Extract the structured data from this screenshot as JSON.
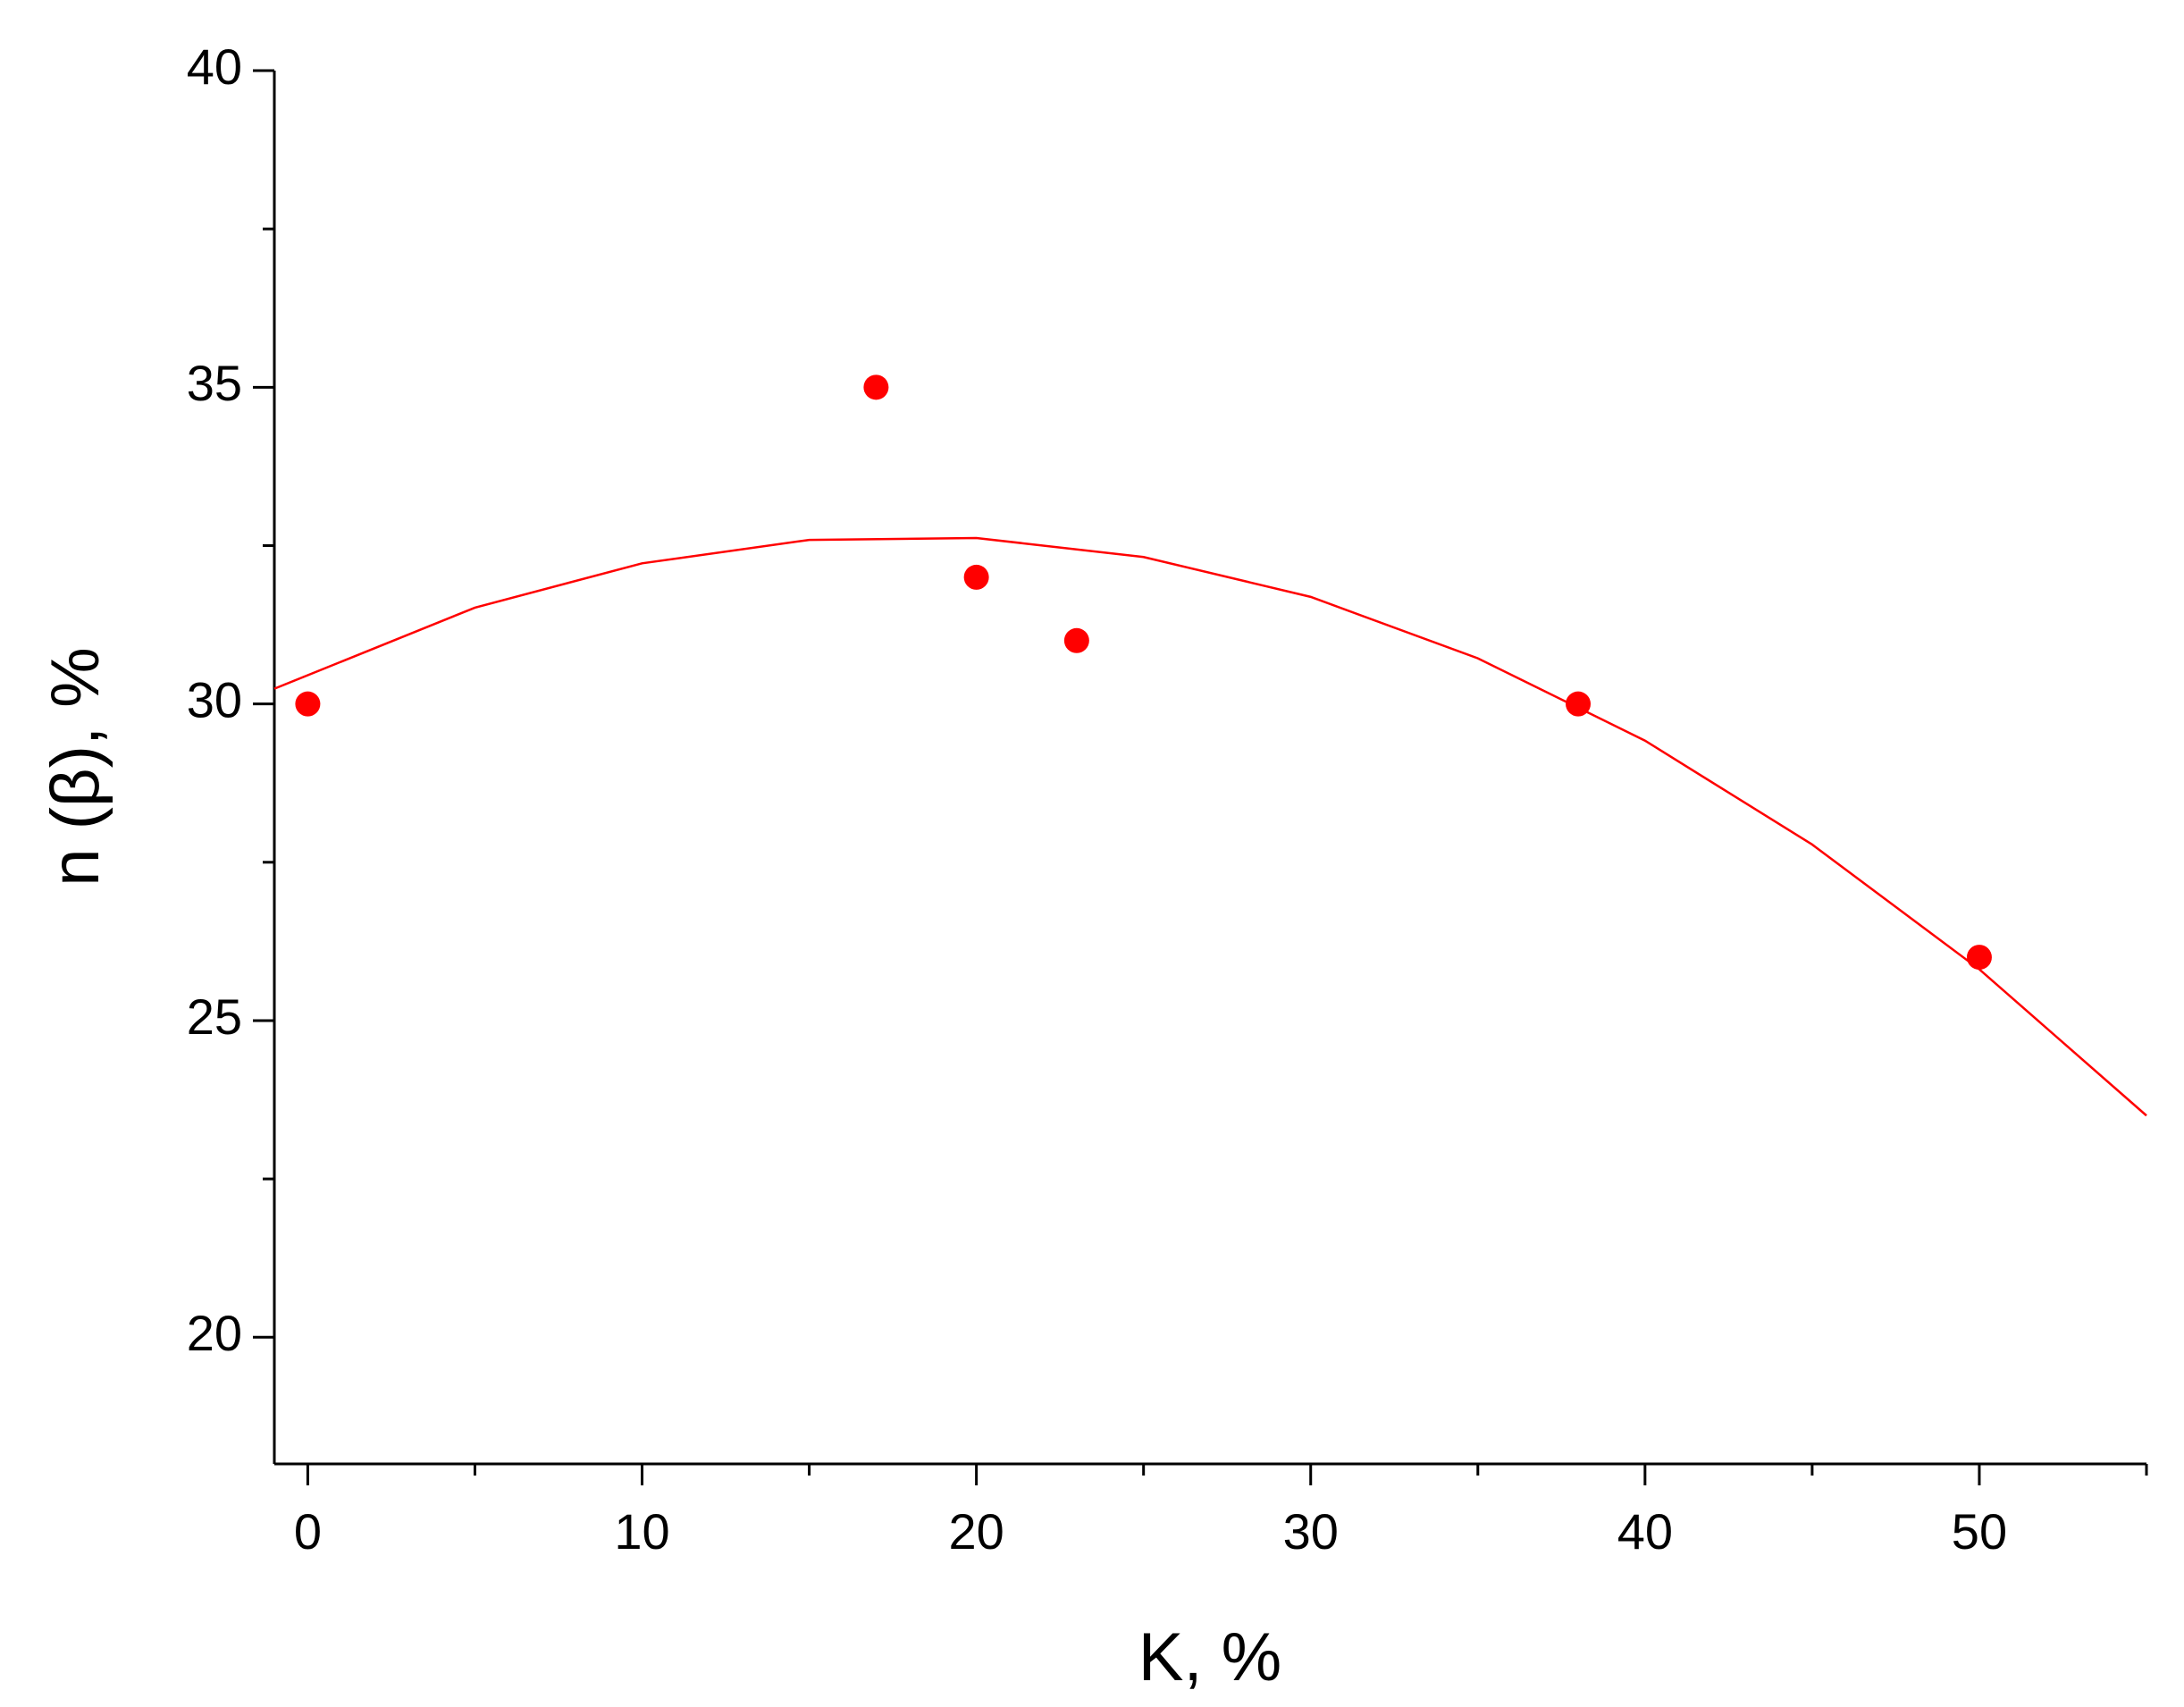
{
  "chart_data": {
    "type": "scatter",
    "x_label": "K, %",
    "y_label": "n (β), %",
    "xlim": [
      -1,
      55
    ],
    "ylim": [
      18,
      40
    ],
    "xticks": [
      0,
      10,
      20,
      30,
      40,
      50
    ],
    "xminorticks": [
      5,
      15,
      25,
      35,
      45,
      55
    ],
    "yticks": [
      20,
      25,
      30,
      35,
      40
    ],
    "yminorticks": [
      22.5,
      27.5,
      32.5,
      37.5
    ],
    "series": [
      {
        "kind": "points",
        "color": "#ff0000",
        "x": [
          0,
          17,
          20,
          23,
          38,
          50
        ],
        "values": [
          30,
          35,
          32,
          31,
          30,
          26
        ]
      },
      {
        "kind": "fit",
        "color": "#ff0000",
        "x": [
          -1,
          5,
          10,
          15,
          20,
          25,
          30,
          35,
          40,
          45,
          50,
          55
        ],
        "values": [
          30.24,
          31.52,
          32.22,
          32.59,
          32.62,
          32.32,
          31.69,
          30.72,
          29.42,
          27.78,
          25.81,
          23.5
        ]
      }
    ]
  }
}
